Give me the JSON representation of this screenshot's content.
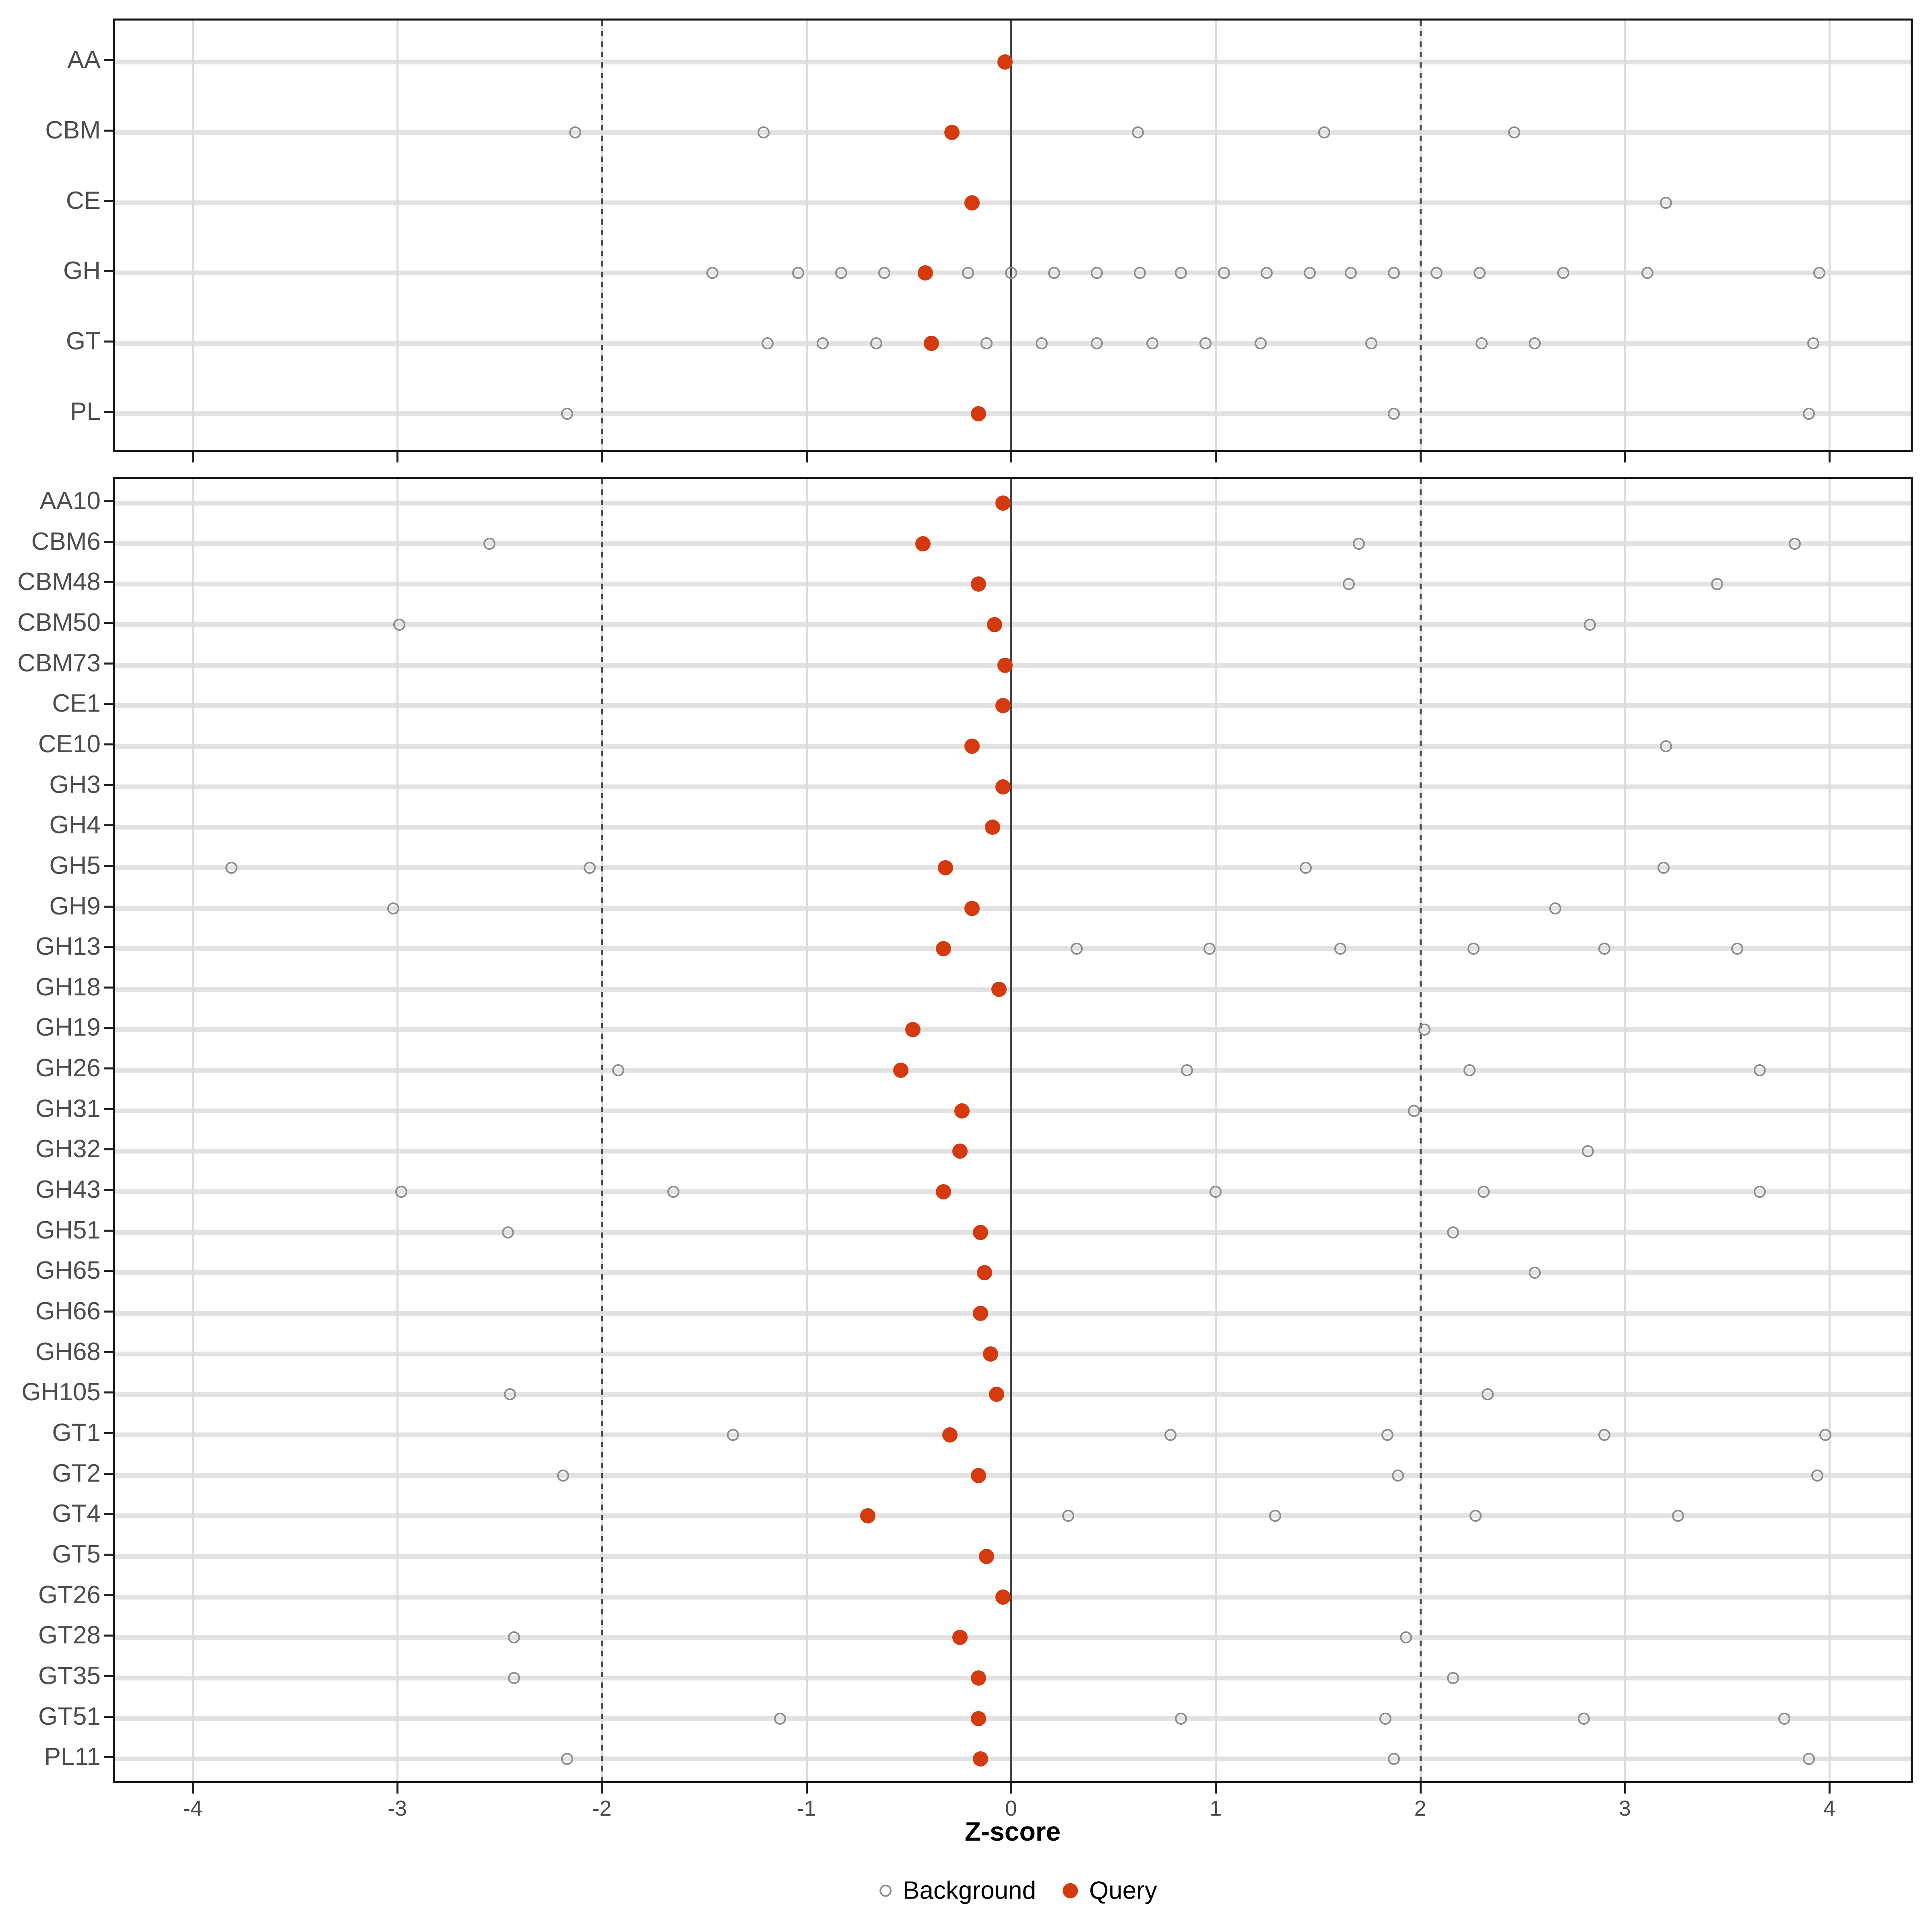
{
  "colors": {
    "query": "#D5390E",
    "background_marker": "#8C8C8C",
    "row_stripe": "#E2E2E2",
    "grid_line": "#DCDCDC",
    "zero_line": "#404040",
    "dotted_reference_line": "#4A4A4A",
    "panel_border": "#141414",
    "axis_text": "#4D4D4D"
  },
  "chart_data": {
    "type": "scatter",
    "title": "",
    "xlabel": "Z-score",
    "ylabel": "",
    "xlim": [
      -4.4,
      4.4
    ],
    "x_ticks": [
      -4,
      -3,
      -2,
      -1,
      0,
      1,
      2,
      3,
      4
    ],
    "grid": "major gridlines on, light gray; bold horizontal stripe per category row",
    "reference_lines": {
      "solid": [
        0
      ],
      "dotted": [
        -2,
        2
      ]
    },
    "legend_position": "bottom-center",
    "legend": [
      {
        "label": "Background",
        "marker": "open-circle",
        "color": "#8C8C8C"
      },
      {
        "label": "Query",
        "marker": "filled-circle",
        "color": "#D5390E"
      }
    ],
    "panels": [
      {
        "name": "families",
        "rows": [
          {
            "label": "AA",
            "query": -0.03,
            "background": []
          },
          {
            "label": "CBM",
            "query": -0.29,
            "background": [
              -2.13,
              -1.21,
              0.62,
              1.53,
              2.46
            ]
          },
          {
            "label": "CE",
            "query": -0.19,
            "background": [
              3.2
            ]
          },
          {
            "label": "GH",
            "query": -0.42,
            "background": [
              -1.46,
              -1.04,
              -0.83,
              -0.62,
              -0.21,
              0.0,
              0.21,
              0.42,
              0.63,
              0.83,
              1.04,
              1.25,
              1.46,
              1.66,
              1.87,
              2.08,
              2.29,
              2.7,
              3.11,
              3.95
            ]
          },
          {
            "label": "GT",
            "query": -0.39,
            "background": [
              -1.19,
              -0.92,
              -0.66,
              -0.12,
              0.15,
              0.42,
              0.69,
              0.95,
              1.22,
              1.76,
              2.3,
              2.56,
              3.92
            ]
          },
          {
            "label": "PL",
            "query": -0.16,
            "background": [
              -2.17,
              1.87,
              3.9
            ]
          }
        ]
      },
      {
        "name": "subfamilies",
        "rows": [
          {
            "label": "AA10",
            "query": -0.04,
            "background": []
          },
          {
            "label": "CBM6",
            "query": -0.43,
            "background": [
              -2.55,
              1.7,
              3.83
            ]
          },
          {
            "label": "CBM48",
            "query": -0.16,
            "background": [
              1.65,
              3.45
            ]
          },
          {
            "label": "CBM50",
            "query": -0.08,
            "background": [
              -2.99,
              2.83
            ]
          },
          {
            "label": "CBM73",
            "query": -0.03,
            "background": []
          },
          {
            "label": "CE1",
            "query": -0.04,
            "background": []
          },
          {
            "label": "CE10",
            "query": -0.19,
            "background": [
              3.2
            ]
          },
          {
            "label": "GH3",
            "query": -0.04,
            "background": []
          },
          {
            "label": "GH4",
            "query": -0.09,
            "background": []
          },
          {
            "label": "GH5",
            "query": -0.32,
            "background": [
              -3.81,
              -2.06,
              1.44,
              3.19
            ]
          },
          {
            "label": "GH9",
            "query": -0.19,
            "background": [
              -3.02,
              2.66
            ]
          },
          {
            "label": "GH13",
            "query": -0.33,
            "background": [
              0.32,
              0.97,
              1.61,
              2.26,
              2.9,
              3.55
            ]
          },
          {
            "label": "GH18",
            "query": -0.06,
            "background": []
          },
          {
            "label": "GH19",
            "query": -0.48,
            "background": [
              2.02
            ]
          },
          {
            "label": "GH26",
            "query": -0.54,
            "background": [
              -1.92,
              0.86,
              2.24,
              3.66
            ]
          },
          {
            "label": "GH31",
            "query": -0.24,
            "background": [
              1.97
            ]
          },
          {
            "label": "GH32",
            "query": -0.25,
            "background": [
              2.82
            ]
          },
          {
            "label": "GH43",
            "query": -0.33,
            "background": [
              -2.98,
              -1.65,
              1.0,
              2.31,
              3.66
            ]
          },
          {
            "label": "GH51",
            "query": -0.15,
            "background": [
              -2.46,
              2.16
            ]
          },
          {
            "label": "GH65",
            "query": -0.13,
            "background": [
              2.56
            ]
          },
          {
            "label": "GH66",
            "query": -0.15,
            "background": []
          },
          {
            "label": "GH68",
            "query": -0.1,
            "background": []
          },
          {
            "label": "GH105",
            "query": -0.07,
            "background": [
              -2.45,
              2.33
            ]
          },
          {
            "label": "GT1",
            "query": -0.3,
            "background": [
              -1.36,
              0.78,
              1.84,
              2.9,
              3.98
            ]
          },
          {
            "label": "GT2",
            "query": -0.16,
            "background": [
              -2.19,
              1.89,
              3.94
            ]
          },
          {
            "label": "GT4",
            "query": -0.7,
            "background": [
              0.28,
              1.29,
              2.27,
              3.26
            ]
          },
          {
            "label": "GT5",
            "query": -0.12,
            "background": []
          },
          {
            "label": "GT26",
            "query": -0.04,
            "background": []
          },
          {
            "label": "GT28",
            "query": -0.25,
            "background": [
              -2.43,
              1.93
            ]
          },
          {
            "label": "GT35",
            "query": -0.16,
            "background": [
              -2.43,
              2.16
            ]
          },
          {
            "label": "GT51",
            "query": -0.16,
            "background": [
              -1.13,
              0.83,
              1.83,
              2.8,
              3.78
            ]
          },
          {
            "label": "PL11",
            "query": -0.15,
            "background": [
              -2.17,
              1.87,
              3.9
            ]
          }
        ]
      }
    ]
  }
}
